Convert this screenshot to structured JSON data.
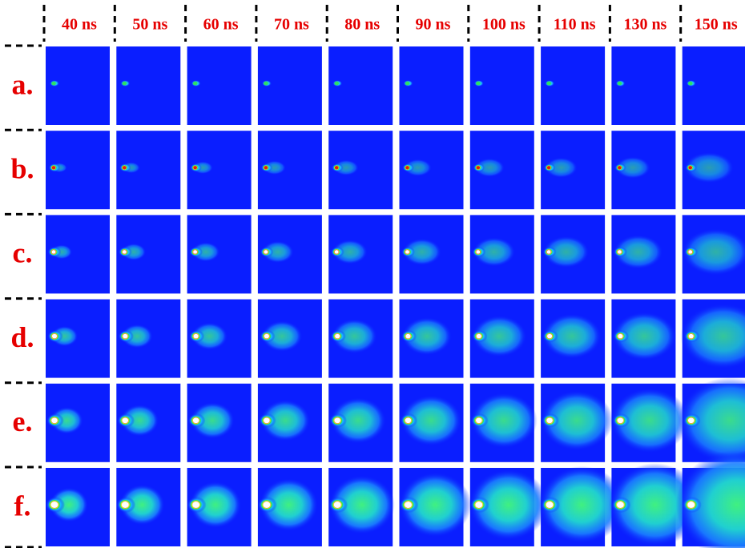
{
  "columns": [
    "40 ns",
    "50 ns",
    "60 ns",
    "70 ns",
    "80 ns",
    "90 ns",
    "100 ns",
    "110 ns",
    "130 ns",
    "150 ns"
  ],
  "rows": [
    "a.",
    "b.",
    "c.",
    "d.",
    "e.",
    "f."
  ]
}
